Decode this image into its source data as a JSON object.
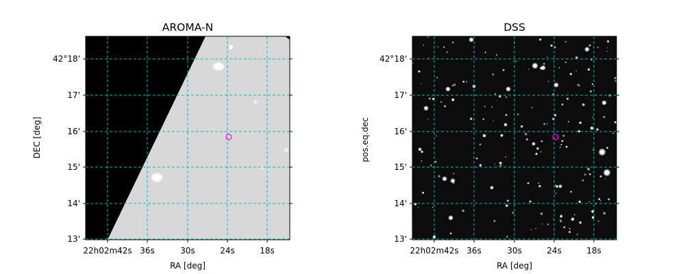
{
  "panels": [
    {
      "title": "AROMA-N",
      "xlabel": "RA [deg]",
      "ylabel": "DEC [deg]",
      "ra_ticks": [
        "22h02m42s",
        "36s",
        "30s",
        "24s",
        "18s"
      ],
      "dec_ticks": [
        "42°18'",
        "17'",
        "16'",
        "15'",
        "14'",
        "13'"
      ]
    },
    {
      "title": "DSS",
      "xlabel": "RA [deg]",
      "ylabel": "pos.eq.dec",
      "ra_ticks": [
        "22h02m42s",
        "36s",
        "30s",
        "24s",
        "18s"
      ],
      "dec_ticks": [
        "42°18'",
        "17'",
        "16'",
        "15'",
        "14'",
        "13'"
      ]
    }
  ],
  "colors": {
    "grid": "#00c0c0",
    "marker": "#ff00ff",
    "sky_dark": "#000000",
    "sky_light": "#d8d8d8"
  }
}
